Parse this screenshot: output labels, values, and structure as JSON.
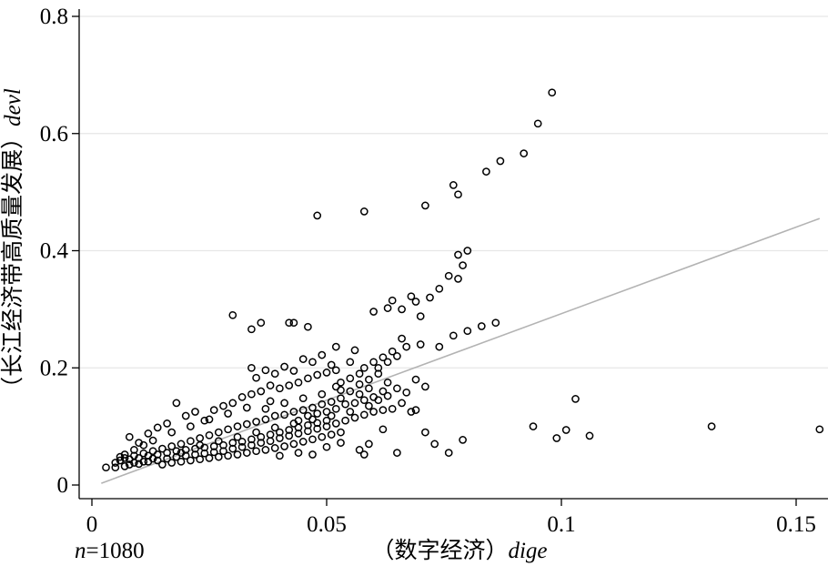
{
  "chart_data": {
    "type": "scatter",
    "title": "",
    "xlabel": {
      "cn": "（数字经济）",
      "var": "dige"
    },
    "ylabel": {
      "cn": "（长江经济带高质量发展）",
      "var": "devl"
    },
    "note": {
      "n_symbol": "n",
      "n_value": "=1080"
    },
    "xlim": [
      0,
      0.157
    ],
    "ylim": [
      0,
      0.8
    ],
    "x_ticks": [
      0,
      0.05,
      0.1,
      0.15
    ],
    "x_tick_labels": [
      "0",
      "0.05",
      "0.1",
      "0.15"
    ],
    "y_ticks": [
      0,
      0.2,
      0.4,
      0.6,
      0.8
    ],
    "y_tick_labels": [
      "0",
      "0.2",
      "0.4",
      "0.6",
      "0.8"
    ],
    "grid": "horizontal",
    "marker": "hollow-circle",
    "fit_line": {
      "x": [
        0.002,
        0.155
      ],
      "y": [
        0.003,
        0.455
      ],
      "color": "#b3b3b3"
    },
    "series": [
      {
        "points": [
          [
            0.098,
            0.67
          ],
          [
            0.095,
            0.617
          ],
          [
            0.092,
            0.566
          ],
          [
            0.087,
            0.553
          ],
          [
            0.084,
            0.535
          ],
          [
            0.077,
            0.512
          ],
          [
            0.078,
            0.496
          ],
          [
            0.071,
            0.477
          ],
          [
            0.058,
            0.467
          ],
          [
            0.048,
            0.46
          ],
          [
            0.08,
            0.4
          ],
          [
            0.078,
            0.393
          ],
          [
            0.079,
            0.375
          ],
          [
            0.076,
            0.357
          ],
          [
            0.078,
            0.352
          ],
          [
            0.074,
            0.335
          ],
          [
            0.072,
            0.32
          ],
          [
            0.068,
            0.322
          ],
          [
            0.064,
            0.315
          ],
          [
            0.063,
            0.302
          ],
          [
            0.06,
            0.296
          ],
          [
            0.066,
            0.3
          ],
          [
            0.069,
            0.313
          ],
          [
            0.07,
            0.288
          ],
          [
            0.03,
            0.29
          ],
          [
            0.036,
            0.277
          ],
          [
            0.042,
            0.277
          ],
          [
            0.046,
            0.27
          ],
          [
            0.043,
            0.277
          ],
          [
            0.034,
            0.266
          ],
          [
            0.086,
            0.277
          ],
          [
            0.083,
            0.271
          ],
          [
            0.08,
            0.263
          ],
          [
            0.077,
            0.255
          ],
          [
            0.074,
            0.236
          ],
          [
            0.07,
            0.24
          ],
          [
            0.067,
            0.236
          ],
          [
            0.066,
            0.25
          ],
          [
            0.064,
            0.228
          ],
          [
            0.062,
            0.218
          ],
          [
            0.06,
            0.21
          ],
          [
            0.058,
            0.2
          ],
          [
            0.057,
            0.19
          ],
          [
            0.055,
            0.182
          ],
          [
            0.053,
            0.175
          ],
          [
            0.052,
            0.168
          ],
          [
            0.056,
            0.23
          ],
          [
            0.052,
            0.236
          ],
          [
            0.051,
            0.205
          ],
          [
            0.055,
            0.21
          ],
          [
            0.049,
            0.222
          ],
          [
            0.047,
            0.21
          ],
          [
            0.045,
            0.215
          ],
          [
            0.043,
            0.195
          ],
          [
            0.041,
            0.202
          ],
          [
            0.039,
            0.19
          ],
          [
            0.037,
            0.196
          ],
          [
            0.035,
            0.183
          ],
          [
            0.034,
            0.2
          ],
          [
            0.038,
            0.17
          ],
          [
            0.062,
            0.16
          ],
          [
            0.06,
            0.15
          ],
          [
            0.058,
            0.145
          ],
          [
            0.056,
            0.14
          ],
          [
            0.054,
            0.138
          ],
          [
            0.052,
            0.13
          ],
          [
            0.05,
            0.125
          ],
          [
            0.048,
            0.122
          ],
          [
            0.046,
            0.118
          ],
          [
            0.044,
            0.11
          ],
          [
            0.064,
            0.13
          ],
          [
            0.068,
            0.125
          ],
          [
            0.066,
            0.14
          ],
          [
            0.063,
            0.175
          ],
          [
            0.061,
            0.19
          ],
          [
            0.059,
            0.165
          ],
          [
            0.057,
            0.155
          ],
          [
            0.055,
            0.16
          ],
          [
            0.053,
            0.148
          ],
          [
            0.051,
            0.142
          ],
          [
            0.049,
            0.138
          ],
          [
            0.047,
            0.132
          ],
          [
            0.045,
            0.128
          ],
          [
            0.043,
            0.125
          ],
          [
            0.041,
            0.12
          ],
          [
            0.039,
            0.118
          ],
          [
            0.037,
            0.112
          ],
          [
            0.035,
            0.108
          ],
          [
            0.033,
            0.104
          ],
          [
            0.031,
            0.1
          ],
          [
            0.029,
            0.095
          ],
          [
            0.027,
            0.09
          ],
          [
            0.025,
            0.085
          ],
          [
            0.023,
            0.08
          ],
          [
            0.021,
            0.075
          ],
          [
            0.019,
            0.07
          ],
          [
            0.017,
            0.066
          ],
          [
            0.015,
            0.062
          ],
          [
            0.013,
            0.058
          ],
          [
            0.011,
            0.054
          ],
          [
            0.009,
            0.05
          ],
          [
            0.007,
            0.046
          ],
          [
            0.006,
            0.042
          ],
          [
            0.005,
            0.038
          ],
          [
            0.003,
            0.03
          ],
          [
            0.005,
            0.03
          ],
          [
            0.007,
            0.032
          ],
          [
            0.008,
            0.035
          ],
          [
            0.01,
            0.036
          ],
          [
            0.012,
            0.04
          ],
          [
            0.014,
            0.042
          ],
          [
            0.016,
            0.045
          ],
          [
            0.018,
            0.048
          ],
          [
            0.02,
            0.05
          ],
          [
            0.022,
            0.052
          ],
          [
            0.024,
            0.054
          ],
          [
            0.026,
            0.056
          ],
          [
            0.028,
            0.058
          ],
          [
            0.03,
            0.062
          ],
          [
            0.032,
            0.065
          ],
          [
            0.034,
            0.068
          ],
          [
            0.036,
            0.072
          ],
          [
            0.038,
            0.075
          ],
          [
            0.04,
            0.08
          ],
          [
            0.042,
            0.084
          ],
          [
            0.044,
            0.088
          ],
          [
            0.046,
            0.092
          ],
          [
            0.048,
            0.096
          ],
          [
            0.05,
            0.1
          ],
          [
            0.052,
            0.105
          ],
          [
            0.054,
            0.11
          ],
          [
            0.056,
            0.115
          ],
          [
            0.058,
            0.12
          ],
          [
            0.06,
            0.125
          ],
          [
            0.062,
            0.128
          ],
          [
            0.04,
            0.05
          ],
          [
            0.044,
            0.055
          ],
          [
            0.047,
            0.052
          ],
          [
            0.05,
            0.065
          ],
          [
            0.053,
            0.072
          ],
          [
            0.057,
            0.06
          ],
          [
            0.058,
            0.052
          ],
          [
            0.059,
            0.07
          ],
          [
            0.062,
            0.095
          ],
          [
            0.065,
            0.055
          ],
          [
            0.071,
            0.09
          ],
          [
            0.073,
            0.07
          ],
          [
            0.076,
            0.055
          ],
          [
            0.079,
            0.077
          ],
          [
            0.069,
            0.128
          ],
          [
            0.094,
            0.1
          ],
          [
            0.099,
            0.08
          ],
          [
            0.101,
            0.094
          ],
          [
            0.103,
            0.147
          ],
          [
            0.106,
            0.084
          ],
          [
            0.132,
            0.1
          ],
          [
            0.155,
            0.095
          ],
          [
            0.022,
            0.125
          ],
          [
            0.018,
            0.14
          ],
          [
            0.016,
            0.105
          ],
          [
            0.014,
            0.098
          ],
          [
            0.012,
            0.088
          ],
          [
            0.01,
            0.072
          ],
          [
            0.008,
            0.082
          ],
          [
            0.02,
            0.118
          ],
          [
            0.024,
            0.11
          ],
          [
            0.026,
            0.128
          ],
          [
            0.028,
            0.135
          ],
          [
            0.03,
            0.14
          ],
          [
            0.032,
            0.15
          ],
          [
            0.034,
            0.155
          ],
          [
            0.036,
            0.16
          ],
          [
            0.04,
            0.165
          ],
          [
            0.042,
            0.17
          ],
          [
            0.044,
            0.175
          ],
          [
            0.046,
            0.182
          ],
          [
            0.048,
            0.188
          ],
          [
            0.05,
            0.192
          ],
          [
            0.052,
            0.196
          ],
          [
            0.038,
            0.143
          ],
          [
            0.033,
            0.132
          ],
          [
            0.029,
            0.122
          ],
          [
            0.025,
            0.112
          ],
          [
            0.021,
            0.1
          ],
          [
            0.017,
            0.09
          ],
          [
            0.013,
            0.076
          ],
          [
            0.011,
            0.068
          ],
          [
            0.009,
            0.06
          ],
          [
            0.007,
            0.052
          ],
          [
            0.006,
            0.048
          ],
          [
            0.008,
            0.044
          ],
          [
            0.01,
            0.046
          ],
          [
            0.012,
            0.05
          ],
          [
            0.014,
            0.052
          ],
          [
            0.016,
            0.055
          ],
          [
            0.018,
            0.058
          ],
          [
            0.02,
            0.06
          ],
          [
            0.022,
            0.062
          ],
          [
            0.024,
            0.064
          ],
          [
            0.026,
            0.066
          ],
          [
            0.028,
            0.068
          ],
          [
            0.03,
            0.072
          ],
          [
            0.032,
            0.074
          ],
          [
            0.034,
            0.078
          ],
          [
            0.036,
            0.082
          ],
          [
            0.038,
            0.086
          ],
          [
            0.04,
            0.09
          ],
          [
            0.042,
            0.094
          ],
          [
            0.044,
            0.098
          ],
          [
            0.046,
            0.102
          ],
          [
            0.048,
            0.106
          ],
          [
            0.05,
            0.11
          ],
          [
            0.015,
            0.035
          ],
          [
            0.017,
            0.038
          ],
          [
            0.019,
            0.04
          ],
          [
            0.021,
            0.042
          ],
          [
            0.023,
            0.044
          ],
          [
            0.025,
            0.046
          ],
          [
            0.027,
            0.048
          ],
          [
            0.029,
            0.05
          ],
          [
            0.031,
            0.052
          ],
          [
            0.033,
            0.055
          ],
          [
            0.035,
            0.058
          ],
          [
            0.037,
            0.06
          ],
          [
            0.039,
            0.063
          ],
          [
            0.041,
            0.066
          ],
          [
            0.043,
            0.07
          ],
          [
            0.045,
            0.074
          ],
          [
            0.047,
            0.078
          ],
          [
            0.049,
            0.082
          ],
          [
            0.051,
            0.086
          ],
          [
            0.053,
            0.09
          ],
          [
            0.011,
            0.04
          ],
          [
            0.013,
            0.045
          ],
          [
            0.009,
            0.038
          ],
          [
            0.019,
            0.055
          ],
          [
            0.023,
            0.068
          ],
          [
            0.027,
            0.075
          ],
          [
            0.031,
            0.082
          ],
          [
            0.035,
            0.09
          ],
          [
            0.039,
            0.098
          ],
          [
            0.043,
            0.105
          ],
          [
            0.047,
            0.112
          ],
          [
            0.051,
            0.118
          ],
          [
            0.055,
            0.125
          ],
          [
            0.059,
            0.135
          ],
          [
            0.061,
            0.145
          ],
          [
            0.063,
            0.152
          ],
          [
            0.065,
            0.165
          ],
          [
            0.067,
            0.158
          ],
          [
            0.069,
            0.18
          ],
          [
            0.071,
            0.168
          ],
          [
            0.037,
            0.13
          ],
          [
            0.041,
            0.14
          ],
          [
            0.045,
            0.148
          ],
          [
            0.049,
            0.155
          ],
          [
            0.053,
            0.162
          ],
          [
            0.057,
            0.172
          ],
          [
            0.059,
            0.18
          ],
          [
            0.061,
            0.2
          ],
          [
            0.063,
            0.21
          ],
          [
            0.065,
            0.22
          ]
        ]
      }
    ]
  }
}
